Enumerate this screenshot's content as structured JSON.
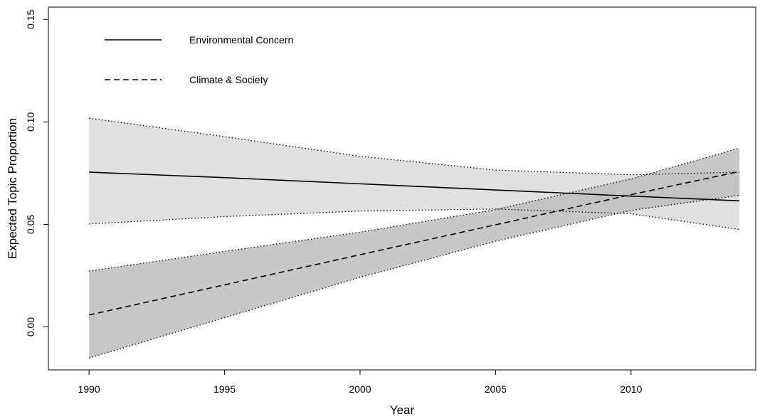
{
  "chart_data": {
    "type": "line",
    "title": "",
    "xlabel": "Year",
    "ylabel": "Expected Topic Proportion",
    "xlim": [
      1988.5,
      2014.6
    ],
    "ylim": [
      -0.021,
      0.156
    ],
    "x_ticks": [
      1990,
      1995,
      2000,
      2005,
      2010
    ],
    "y_ticks": [
      0.0,
      0.05,
      0.1,
      0.15
    ],
    "x_tick_labels": [
      "1990",
      "1995",
      "2000",
      "2005",
      "2010"
    ],
    "y_tick_labels": [
      "0.00",
      "0.05",
      "0.10",
      "0.15"
    ],
    "grid": false,
    "legend_position": "top-left",
    "series": [
      {
        "name": "Environmental Concern",
        "line_style": "solid",
        "band_color": "#e0e0e0",
        "x": [
          1990,
          1995,
          2000,
          2005,
          2010,
          2014
        ],
        "y": [
          0.0755,
          0.0728,
          0.0698,
          0.0668,
          0.0638,
          0.0615
        ],
        "lower": [
          0.0502,
          0.0538,
          0.0565,
          0.0575,
          0.0552,
          0.0475
        ],
        "upper": [
          0.1018,
          0.0928,
          0.0832,
          0.0765,
          0.0742,
          0.0755
        ]
      },
      {
        "name": "Climate & Society",
        "line_style": "dashed",
        "band_color": "#bdbdbd",
        "x": [
          1990,
          1995,
          2000,
          2005,
          2010,
          2014
        ],
        "y": [
          0.0058,
          0.0205,
          0.0352,
          0.0498,
          0.0645,
          0.0758
        ],
        "lower": [
          -0.0152,
          0.0045,
          0.0242,
          0.0418,
          0.0568,
          0.0642
        ],
        "upper": [
          0.0272,
          0.0368,
          0.0462,
          0.0572,
          0.0722,
          0.0872
        ]
      }
    ]
  }
}
